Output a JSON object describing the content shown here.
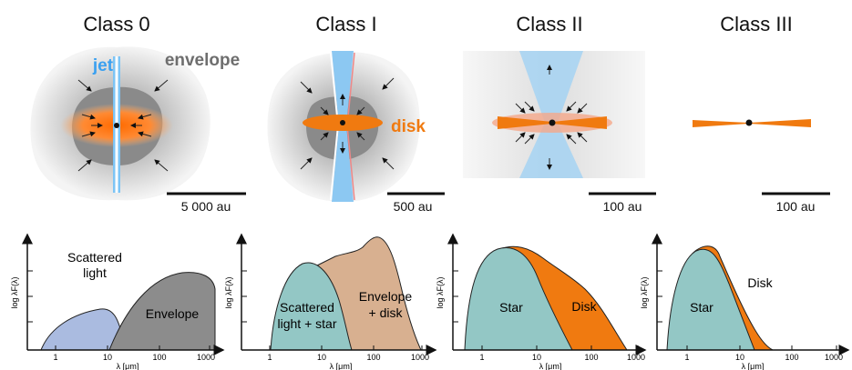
{
  "classes": [
    {
      "title": "Class 0",
      "scale": "5 000 au"
    },
    {
      "title": "Class I",
      "scale": "500 au"
    },
    {
      "title": "Class II",
      "scale": "100 au"
    },
    {
      "title": "Class III",
      "scale": "100 au"
    }
  ],
  "labels": {
    "jet": "jet",
    "envelope": "envelope",
    "disk": "disk"
  },
  "plots": {
    "ylabel": "log λF(λ)",
    "xlabel": "λ [μm]",
    "ticks": [
      "1",
      "10",
      "100",
      "1000"
    ],
    "p0": {
      "scattered": "Scattered",
      "light": "light",
      "envelope": "Envelope"
    },
    "p1": {
      "sc1": "Scattered",
      "sc2": "light + star",
      "env1": "Envelope",
      "env2": "+ disk"
    },
    "p2": {
      "star": "Star",
      "disk": "Disk"
    },
    "p3": {
      "star": "Star",
      "disk": "Disk"
    }
  },
  "colors": {
    "orange": "#f07a10",
    "blue": "#5aaee8",
    "teal": "#93c7c5",
    "lavender": "#aabbe0",
    "grey": "#8c8c8c",
    "tan": "#d8b090"
  }
}
